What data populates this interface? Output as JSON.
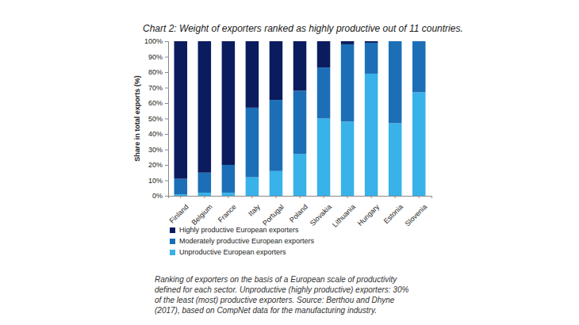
{
  "chart_data": {
    "type": "bar",
    "stacked": true,
    "title": "Chart 2: Weight of exporters ranked as highly productive out of 11 countries.",
    "y_label": "Share in total exports (%)",
    "categories": [
      "Finland",
      "Belgium",
      "France",
      "Italy",
      "Portugal",
      "Poland",
      "Slovakia",
      "Lithuania",
      "Hungary",
      "Estonia",
      "Slovenia"
    ],
    "series": [
      {
        "name": "Highly productive European exporters",
        "color": "#0b1c5e",
        "values": [
          89,
          85,
          80,
          43,
          38,
          32,
          17,
          2,
          1,
          0,
          0
        ]
      },
      {
        "name": "Moderately productive European exporters",
        "color": "#1c6fb6",
        "values": [
          10,
          13,
          18,
          45,
          46,
          41,
          33,
          50,
          20,
          53,
          33
        ]
      },
      {
        "name": "Unproductive European exporters",
        "color": "#38b2e9",
        "values": [
          1,
          2,
          2,
          12,
          16,
          27,
          50,
          48,
          79,
          47,
          67
        ]
      }
    ],
    "ylim": [
      0,
      100
    ],
    "yticks": [
      {
        "value": 0,
        "label": "0%"
      },
      {
        "value": 10,
        "label": "10%"
      },
      {
        "value": 20,
        "label": "20%"
      },
      {
        "value": 30,
        "label": "30%"
      },
      {
        "value": 40,
        "label": "40%"
      },
      {
        "value": 50,
        "label": "50%"
      },
      {
        "value": 60,
        "label": "60%"
      },
      {
        "value": 70,
        "label": "70%"
      },
      {
        "value": 80,
        "label": "80%"
      },
      {
        "value": 90,
        "label": "90%"
      },
      {
        "value": 100,
        "label": "100%"
      }
    ],
    "grid": false,
    "legend": "bottom-left",
    "annotations": [
      "Ranking of exporters on the basis of a European scale of productivity",
      "defined for each sector. Unproductive (highly productive) exporters: 30%",
      "of the least (most) productive exporters. Source: Berthou and Dhyne",
      "(2017), based on CompNet data for the manufacturing industry."
    ]
  }
}
